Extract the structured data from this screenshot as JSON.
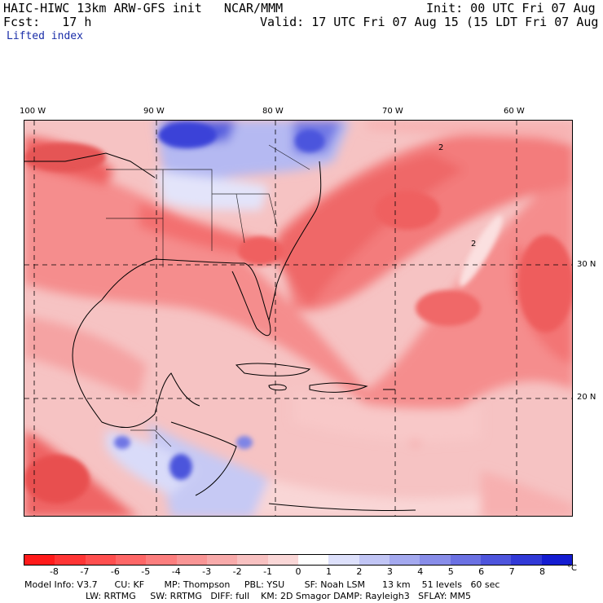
{
  "header": {
    "model_title": "HAIC-HIWC 13km ARW-GFS init   NCAR/MMM",
    "init": "Init: 00 UTC Fri 07 Aug 15",
    "forecast": "Fcst:   17 h",
    "valid": "Valid: 17 UTC Fri 07 Aug 15 (15 LDT Fri 07 Aug 15)",
    "field": "Lifted index"
  },
  "map": {
    "longitude_labels": [
      "100 W",
      "90 W",
      "80 W",
      "70 W",
      "60 W"
    ],
    "latitude_labels": [
      "30 N",
      "20 N"
    ],
    "contour_label": "2"
  },
  "colorbar": {
    "ticks": [
      "-8",
      "-7",
      "-6",
      "-5",
      "-4",
      "-3",
      "-2",
      "-1",
      "0",
      "1",
      "2",
      "3",
      "4",
      "5",
      "6",
      "7",
      "8"
    ],
    "unit": "°C",
    "colors": [
      "#ff1a1a",
      "#ff3535",
      "#ff4f4f",
      "#fe6767",
      "#fc7e7e",
      "#f99595",
      "#f8aaaa",
      "#f8c1c1",
      "#fad7d7",
      "#fefefe",
      "#dde0fb",
      "#c1c5f5",
      "#a4a9ef",
      "#888de9",
      "#6b71e3",
      "#4e55dd",
      "#3139d7",
      "#141cd1"
    ]
  },
  "model_info": {
    "line1": "Model Info: V3.7      CU: KF       MP: Thompson     PBL: YSU       SF: Noah LSM      13 km    51 levels   60 sec",
    "line2": "LW: RRTMG     SW: RRTMG   DIFF: full    KM: 2D Smagor DAMP: Rayleigh3   SFLAY: MM5"
  }
}
